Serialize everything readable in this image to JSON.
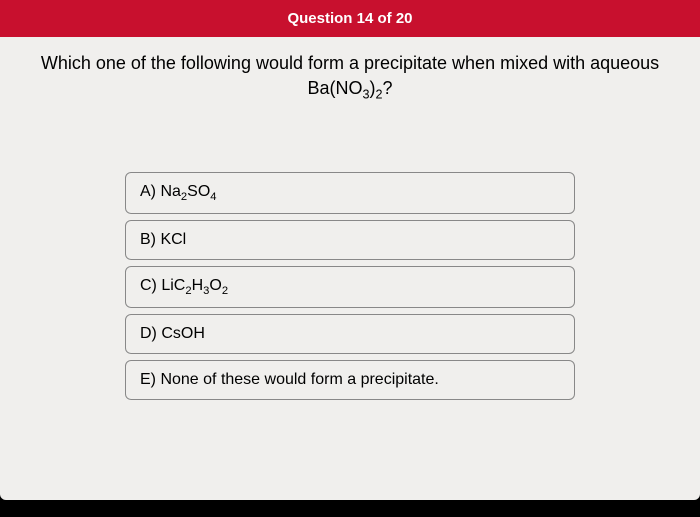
{
  "header": {
    "title": "Question 14 of 20"
  },
  "question": {
    "text": "Which one of the following would form a precipitate when mixed with aqueous",
    "formula_html": "Ba(NO<sub>3</sub>)<sub>2</sub>?"
  },
  "options": [
    {
      "letter": "A)",
      "html": "Na<sub>2</sub>SO<sub>4</sub>"
    },
    {
      "letter": "B)",
      "html": "KCl"
    },
    {
      "letter": "C)",
      "html": "LiC<sub>2</sub>H<sub>3</sub>O<sub>2</sub>"
    },
    {
      "letter": "D)",
      "html": "CsOH"
    },
    {
      "letter": "E)",
      "html": "None of these would form a precipitate."
    }
  ],
  "colors": {
    "header_bg": "#c8102e",
    "header_text": "#ffffff",
    "page_bg": "#f0efed",
    "option_border": "#888888",
    "text": "#000000"
  }
}
